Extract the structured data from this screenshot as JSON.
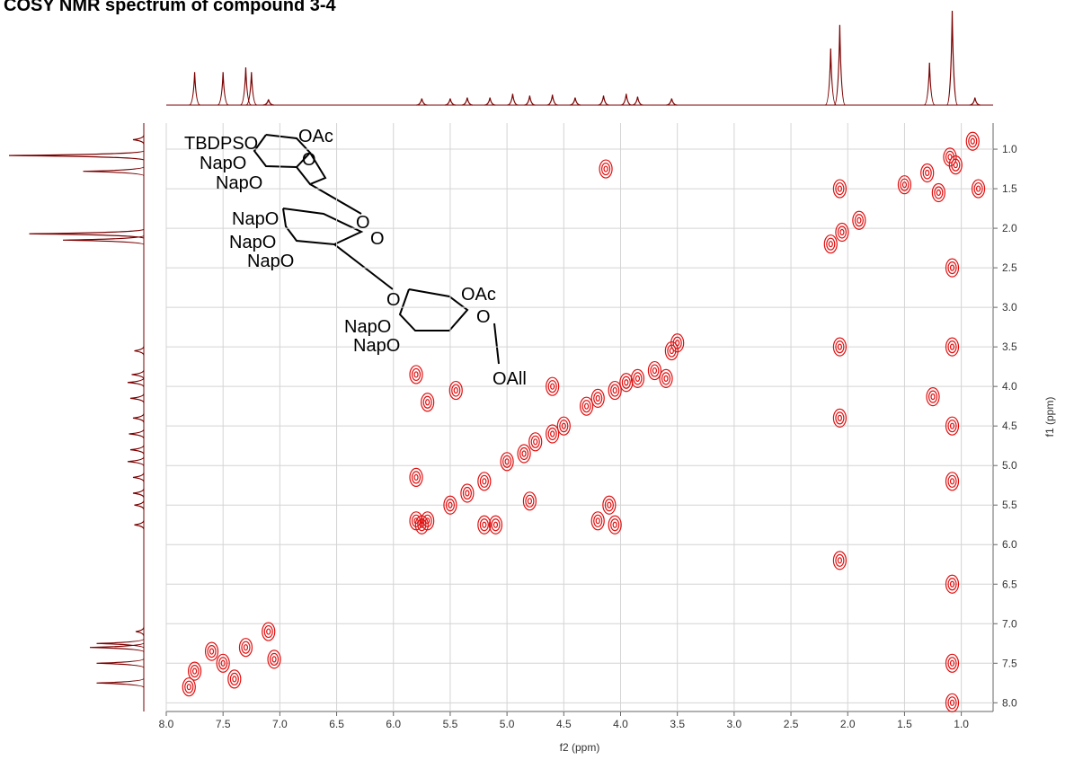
{
  "chart_data": {
    "type": "contour",
    "title": "COSY NMR spectrum of compound 3-4",
    "x_label": "f2 (ppm)",
    "y_label": "f1 (ppm)",
    "color": "#e01010",
    "trace_color": "#7a0000",
    "grid": true,
    "xlim": [
      8.0,
      0.72
    ],
    "ylim": [
      0.67,
      8.11
    ],
    "xticks": [
      {
        "value": 8,
        "label": "8.0"
      },
      {
        "value": 7.5,
        "label": "7.5"
      },
      {
        "value": 7,
        "label": "7.0"
      },
      {
        "value": 6.5,
        "label": "6.5"
      },
      {
        "value": 6,
        "label": "6.0"
      },
      {
        "value": 5.5,
        "label": "5.5"
      },
      {
        "value": 5,
        "label": "5.0"
      },
      {
        "value": 4.5,
        "label": "4.5"
      },
      {
        "value": 4,
        "label": "4.0"
      },
      {
        "value": 3.5,
        "label": "3.5"
      },
      {
        "value": 3,
        "label": "3.0"
      },
      {
        "value": 2.5,
        "label": "2.5"
      },
      {
        "value": 2,
        "label": "2.0"
      },
      {
        "value": 1.5,
        "label": "1.5"
      },
      {
        "value": 1,
        "label": "1.0"
      }
    ],
    "yticks": [
      {
        "value": 1,
        "label": "1.0"
      },
      {
        "value": 1.5,
        "label": "1.5"
      },
      {
        "value": 2,
        "label": "2.0"
      },
      {
        "value": 2.5,
        "label": "2.5"
      },
      {
        "value": 3,
        "label": "3.0"
      },
      {
        "value": 3.5,
        "label": "3.5"
      },
      {
        "value": 4,
        "label": "4.0"
      },
      {
        "value": 4.5,
        "label": "4.5"
      },
      {
        "value": 5,
        "label": "5.0"
      },
      {
        "value": 5.5,
        "label": "5.5"
      },
      {
        "value": 6,
        "label": "6.0"
      },
      {
        "value": 6.5,
        "label": "6.5"
      },
      {
        "value": 7,
        "label": "7.0"
      },
      {
        "value": 7.5,
        "label": "7.5"
      },
      {
        "value": 8,
        "label": "8.0"
      }
    ],
    "x": [
      7.75,
      7.5,
      7.3,
      7.1,
      7.05,
      7.8,
      7.6,
      7.4,
      5.75,
      5.5,
      5.35,
      5.2,
      5.0,
      4.85,
      4.75,
      4.6,
      4.5,
      4.3,
      4.2,
      4.05,
      3.95,
      3.85,
      3.7,
      3.55,
      3.5,
      3.6,
      5.8,
      5.8,
      5.8,
      5.7,
      5.2,
      5.1,
      4.2,
      4.1,
      4.05,
      4.13,
      1.25,
      5.45,
      5.7,
      4.6,
      4.8,
      2.15,
      2.05,
      1.9,
      1.3,
      1.1,
      0.9,
      1.5,
      1.2,
      1.05,
      0.85,
      1.08,
      1.08,
      1.08,
      1.08,
      1.08,
      1.08,
      1.08,
      2.07,
      2.07,
      2.07,
      2.07
    ],
    "y": [
      7.6,
      7.5,
      7.3,
      7.1,
      7.45,
      7.8,
      7.35,
      7.7,
      5.75,
      5.5,
      5.35,
      5.2,
      4.95,
      4.85,
      4.7,
      4.6,
      4.5,
      4.25,
      4.15,
      4.05,
      3.95,
      3.9,
      3.8,
      3.55,
      3.45,
      3.9,
      3.85,
      5.15,
      5.7,
      5.7,
      5.75,
      5.75,
      5.7,
      5.5,
      5.75,
      1.25,
      4.13,
      4.05,
      4.2,
      4.0,
      5.45,
      2.2,
      2.05,
      1.9,
      1.3,
      1.1,
      0.9,
      1.45,
      1.55,
      1.2,
      1.5,
      2.5,
      3.5,
      4.5,
      5.2,
      6.5,
      7.5,
      8.0,
      1.5,
      3.5,
      4.4,
      6.2
    ],
    "projection": {
      "x": [
        7.75,
        7.5,
        7.3,
        7.25,
        7.1,
        5.75,
        5.5,
        5.35,
        5.15,
        4.95,
        4.8,
        4.6,
        4.4,
        4.15,
        3.95,
        3.85,
        3.55,
        2.15,
        2.07,
        1.28,
        1.08,
        0.88
      ],
      "values": [
        0.35,
        0.35,
        0.4,
        0.35,
        0.06,
        0.07,
        0.07,
        0.08,
        0.08,
        0.12,
        0.1,
        0.11,
        0.08,
        0.1,
        0.12,
        0.09,
        0.07,
        0.6,
        0.85,
        0.45,
        1.0,
        0.08
      ]
    },
    "annotations": [
      "TBDPSO",
      "OAc",
      "O",
      "NapO",
      "NapO",
      "O",
      "NapO",
      "O",
      "NapO",
      "NapO",
      "O",
      "OAc",
      "O",
      "NapO",
      "NapO",
      "OAll"
    ]
  }
}
